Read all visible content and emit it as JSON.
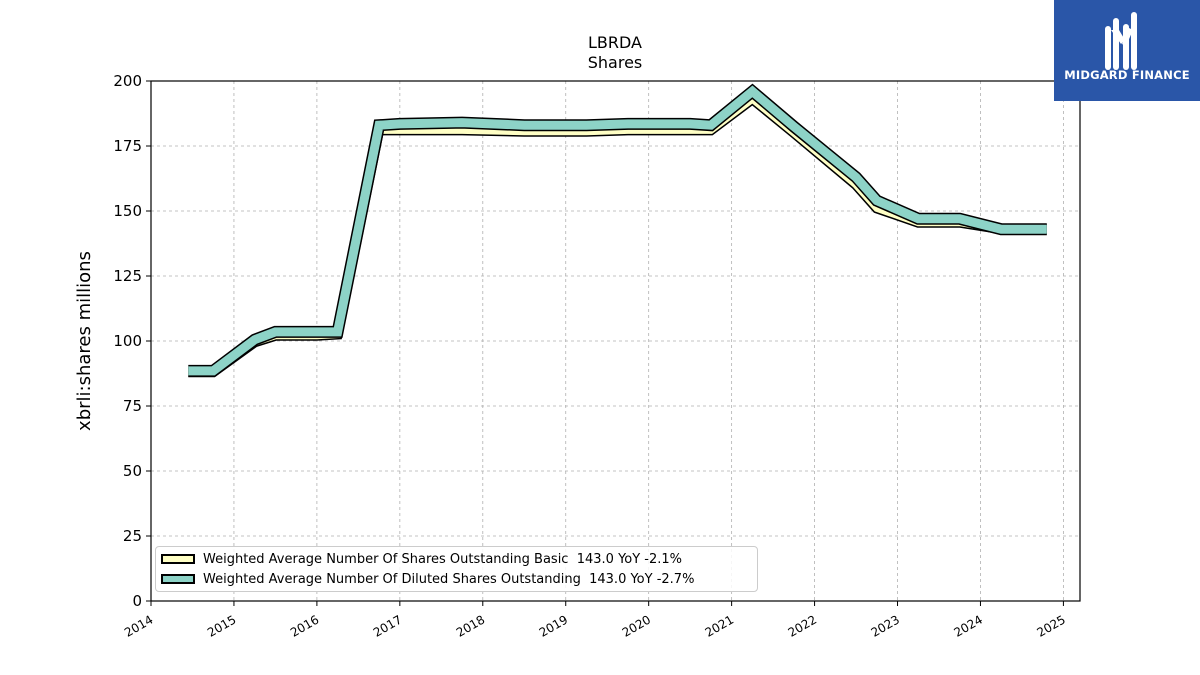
{
  "chart_data": {
    "type": "area",
    "title": "LBRDA",
    "subtitle": "Shares",
    "ylabel": "xbrli:shares millions",
    "xlabel": "",
    "ylim": [
      0,
      200
    ],
    "xlim": [
      2014.0,
      2025.2
    ],
    "yticks": [
      "0",
      "25",
      "50",
      "75",
      "100",
      "125",
      "150",
      "175",
      "200"
    ],
    "xticks": [
      "2014",
      "2015",
      "2016",
      "2017",
      "2018",
      "2019",
      "2020",
      "2021",
      "2022",
      "2023",
      "2024",
      "2025"
    ],
    "grid": true,
    "legend_position": "lower-left",
    "x": [
      2014.45,
      2014.75,
      2015.25,
      2015.5,
      2016.0,
      2016.25,
      2016.75,
      2017.0,
      2017.75,
      2018.5,
      2019.25,
      2019.75,
      2020.5,
      2020.75,
      2021.25,
      2021.75,
      2022.5,
      2022.75,
      2023.25,
      2023.75,
      2024.25,
      2024.8
    ],
    "series": [
      {
        "name": "Weighted Average Number Of Shares Outstanding Basic",
        "legend_label": "Weighted Average Number Of Shares Outstanding Basic  143.0 YoY -2.1%",
        "color": "#ffffc5",
        "values": [
          88.0,
          88.0,
          99.5,
          102.0,
          102.0,
          102.5,
          181.0,
          181.0,
          181.0,
          180.5,
          180.5,
          181.0,
          181.0,
          181.0,
          193.0,
          180.0,
          160.0,
          151.0,
          145.5,
          145.5,
          143.0,
          143.0
        ]
      },
      {
        "name": "Weighted Average Number Of Diluted Shares Outstanding",
        "legend_label": "Weighted Average Number Of Diluted Shares Outstanding  143.0 YoY -2.7%",
        "color": "#8dd3c7",
        "values": [
          88.5,
          88.5,
          100.5,
          103.5,
          103.5,
          103.5,
          183.0,
          183.5,
          184.0,
          183.0,
          183.0,
          183.5,
          183.5,
          183.0,
          196.0,
          182.5,
          163.0,
          154.0,
          147.0,
          147.0,
          143.0,
          143.0
        ]
      }
    ]
  },
  "logo": {
    "text": "MIDGARD FINANCE"
  }
}
